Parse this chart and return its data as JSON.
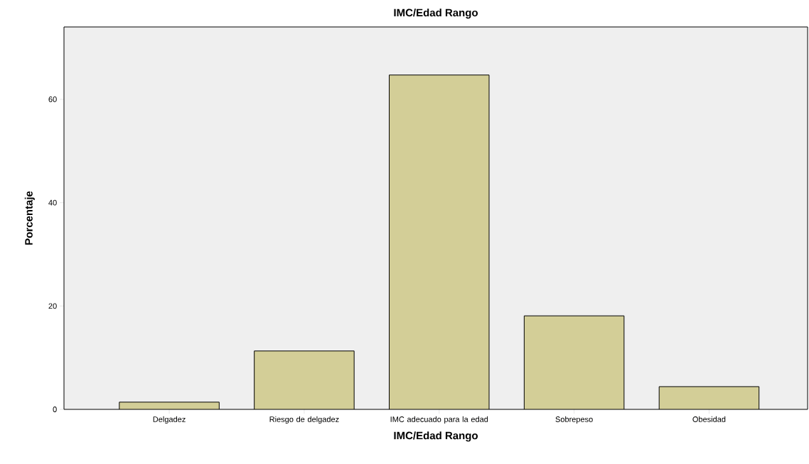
{
  "chart_data": {
    "type": "bar",
    "title": "IMC/Edad Rango",
    "xlabel": "IMC/Edad Rango",
    "ylabel": "Porcentaje",
    "categories": [
      "Delgadez",
      "Riesgo de delgadez",
      "IMC adecuado para la edad",
      "Sobrepeso",
      "Obesidad"
    ],
    "values": [
      1.4,
      11.3,
      64.7,
      18.1,
      4.4
    ],
    "color": "#d3ce97",
    "ylim": [
      0,
      74
    ],
    "yticks": [
      0,
      20,
      40,
      60
    ]
  }
}
